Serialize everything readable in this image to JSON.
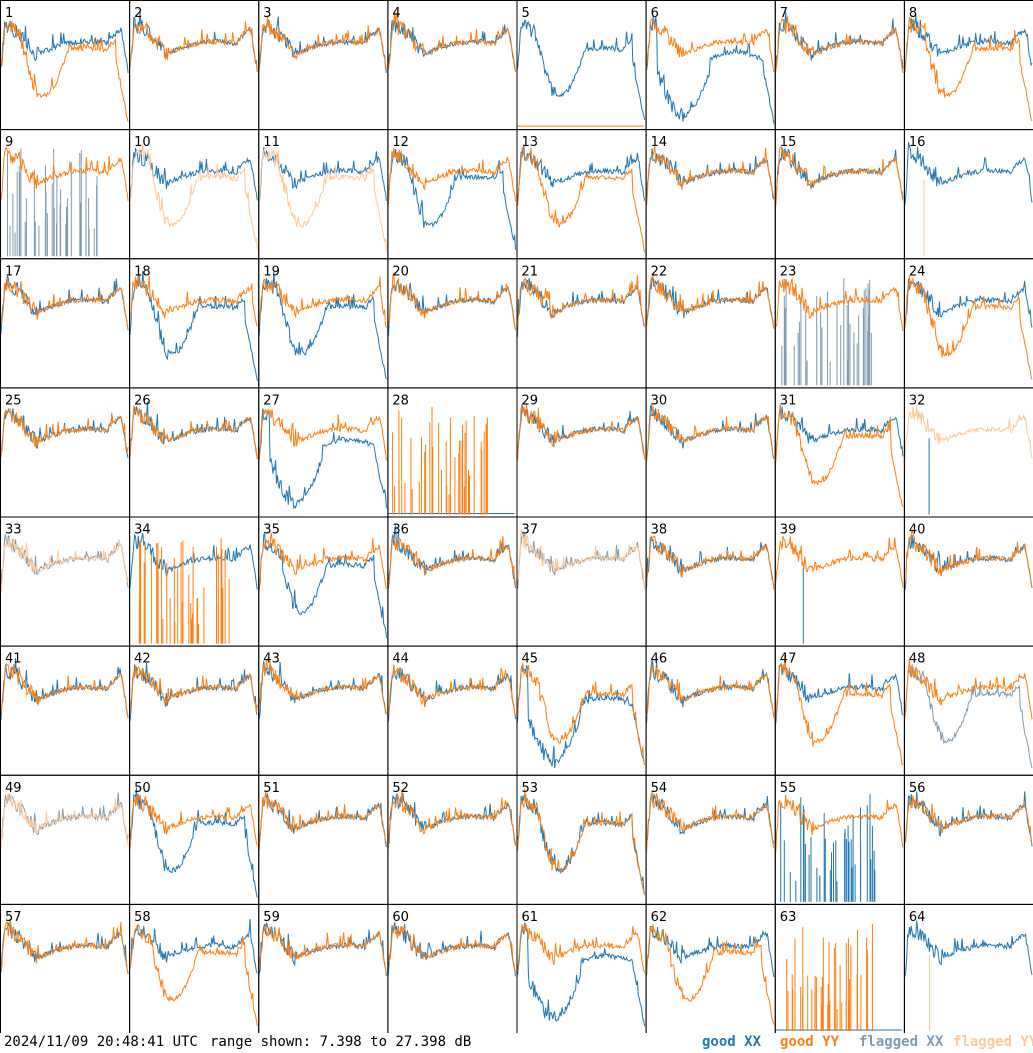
{
  "footer": {
    "timestamp": "2024/11/09 20:48:41 UTC",
    "range_text": "range shown: 7.398 to 27.398 dB"
  },
  "legend": [
    {
      "label": "good XX",
      "color": "#1f77b4"
    },
    {
      "label": "good YY",
      "color": "#ff7f0e"
    },
    {
      "label": "flagged XX",
      "color": "#7f9bb3"
    },
    {
      "label": "flagged YY",
      "color": "#ffc896"
    }
  ],
  "chart_data": {
    "type": "line",
    "title": "",
    "ylim": [
      7.398,
      27.398
    ],
    "yunit": "dB",
    "grid": false,
    "legend_position": "bottom-right",
    "panels": [
      {
        "label": "1",
        "xx": "good",
        "yy": "good",
        "xx_shape": "flat",
        "yy_shape": "dip"
      },
      {
        "label": "2",
        "xx": "good",
        "yy": "good",
        "xx_shape": "flat",
        "yy_shape": "flat"
      },
      {
        "label": "3",
        "xx": "good",
        "yy": "good",
        "xx_shape": "flat",
        "yy_shape": "flat"
      },
      {
        "label": "4",
        "xx": "good",
        "yy": "good",
        "xx_shape": "flat",
        "yy_shape": "flat"
      },
      {
        "label": "5",
        "xx": "good",
        "yy": "good",
        "xx_shape": "dip",
        "yy_shape": "dead"
      },
      {
        "label": "6",
        "xx": "good",
        "yy": "good",
        "xx_shape": "deep",
        "yy_shape": "flat"
      },
      {
        "label": "7",
        "xx": "good",
        "yy": "good",
        "xx_shape": "flat",
        "yy_shape": "flat"
      },
      {
        "label": "8",
        "xx": "good",
        "yy": "good",
        "xx_shape": "flat",
        "yy_shape": "dip"
      },
      {
        "label": "9",
        "xx": "flagged",
        "yy": "good",
        "xx_shape": "spikes",
        "yy_shape": "flat"
      },
      {
        "label": "10",
        "xx": "good",
        "yy": "flagged",
        "xx_shape": "flat",
        "yy_shape": "dip"
      },
      {
        "label": "11",
        "xx": "good",
        "yy": "flagged",
        "xx_shape": "flat",
        "yy_shape": "dip"
      },
      {
        "label": "12",
        "xx": "good",
        "yy": "good",
        "xx_shape": "dip",
        "yy_shape": "flat"
      },
      {
        "label": "13",
        "xx": "good",
        "yy": "good",
        "xx_shape": "flat",
        "yy_shape": "dip"
      },
      {
        "label": "14",
        "xx": "good",
        "yy": "good",
        "xx_shape": "flat",
        "yy_shape": "flat"
      },
      {
        "label": "15",
        "xx": "good",
        "yy": "good",
        "xx_shape": "flat",
        "yy_shape": "flat"
      },
      {
        "label": "16",
        "xx": "good",
        "yy": "flagged",
        "xx_shape": "flat",
        "yy_shape": "spike1"
      },
      {
        "label": "17",
        "xx": "good",
        "yy": "good",
        "xx_shape": "flat",
        "yy_shape": "flat"
      },
      {
        "label": "18",
        "xx": "good",
        "yy": "good",
        "xx_shape": "dip",
        "yy_shape": "flat"
      },
      {
        "label": "19",
        "xx": "good",
        "yy": "good",
        "xx_shape": "dip",
        "yy_shape": "flat"
      },
      {
        "label": "20",
        "xx": "good",
        "yy": "good",
        "xx_shape": "flat",
        "yy_shape": "flat"
      },
      {
        "label": "21",
        "xx": "good",
        "yy": "good",
        "xx_shape": "flat",
        "yy_shape": "flat"
      },
      {
        "label": "22",
        "xx": "good",
        "yy": "good",
        "xx_shape": "flat",
        "yy_shape": "flat"
      },
      {
        "label": "23",
        "xx": "flagged",
        "yy": "good",
        "xx_shape": "spikes",
        "yy_shape": "flat"
      },
      {
        "label": "24",
        "xx": "good",
        "yy": "good",
        "xx_shape": "flat",
        "yy_shape": "dip"
      },
      {
        "label": "25",
        "xx": "good",
        "yy": "good",
        "xx_shape": "flat",
        "yy_shape": "flat"
      },
      {
        "label": "26",
        "xx": "good",
        "yy": "good",
        "xx_shape": "flat",
        "yy_shape": "flat"
      },
      {
        "label": "27",
        "xx": "good",
        "yy": "good",
        "xx_shape": "deep",
        "yy_shape": "flat"
      },
      {
        "label": "28",
        "xx": "good",
        "yy": "good",
        "xx_shape": "dead",
        "yy_shape": "spikes"
      },
      {
        "label": "29",
        "xx": "good",
        "yy": "good",
        "xx_shape": "flat",
        "yy_shape": "flat"
      },
      {
        "label": "30",
        "xx": "good",
        "yy": "good",
        "xx_shape": "flat",
        "yy_shape": "flat"
      },
      {
        "label": "31",
        "xx": "good",
        "yy": "good",
        "xx_shape": "flat",
        "yy_shape": "dip"
      },
      {
        "label": "32",
        "xx": "good",
        "yy": "flagged",
        "xx_shape": "spike1",
        "yy_shape": "flat"
      },
      {
        "label": "33",
        "xx": "flagged",
        "yy": "flagged",
        "xx_shape": "flat",
        "yy_shape": "flat"
      },
      {
        "label": "34",
        "xx": "good",
        "yy": "good",
        "xx_shape": "flat",
        "yy_shape": "spikes"
      },
      {
        "label": "35",
        "xx": "good",
        "yy": "good",
        "xx_shape": "dip",
        "yy_shape": "flat"
      },
      {
        "label": "36",
        "xx": "good",
        "yy": "good",
        "xx_shape": "flat",
        "yy_shape": "flat"
      },
      {
        "label": "37",
        "xx": "flagged",
        "yy": "flagged",
        "xx_shape": "flat",
        "yy_shape": "flat"
      },
      {
        "label": "38",
        "xx": "good",
        "yy": "good",
        "xx_shape": "flat",
        "yy_shape": "flat"
      },
      {
        "label": "39",
        "xx": "good",
        "yy": "good",
        "xx_shape": "spike1",
        "yy_shape": "flat"
      },
      {
        "label": "40",
        "xx": "good",
        "yy": "good",
        "xx_shape": "flat",
        "yy_shape": "flat"
      },
      {
        "label": "41",
        "xx": "good",
        "yy": "good",
        "xx_shape": "flat",
        "yy_shape": "flat"
      },
      {
        "label": "42",
        "xx": "good",
        "yy": "good",
        "xx_shape": "flat",
        "yy_shape": "flat"
      },
      {
        "label": "43",
        "xx": "good",
        "yy": "good",
        "xx_shape": "flat",
        "yy_shape": "flat"
      },
      {
        "label": "44",
        "xx": "good",
        "yy": "good",
        "xx_shape": "flat",
        "yy_shape": "flat"
      },
      {
        "label": "45",
        "xx": "good",
        "yy": "good",
        "xx_shape": "deep",
        "yy_shape": "dip"
      },
      {
        "label": "46",
        "xx": "good",
        "yy": "good",
        "xx_shape": "flat",
        "yy_shape": "flat"
      },
      {
        "label": "47",
        "xx": "good",
        "yy": "good",
        "xx_shape": "flat",
        "yy_shape": "dip"
      },
      {
        "label": "48",
        "xx": "flagged",
        "yy": "good",
        "xx_shape": "dip",
        "yy_shape": "flat"
      },
      {
        "label": "49",
        "xx": "flagged",
        "yy": "flagged",
        "xx_shape": "flat",
        "yy_shape": "flat"
      },
      {
        "label": "50",
        "xx": "good",
        "yy": "good",
        "xx_shape": "dip",
        "yy_shape": "flat"
      },
      {
        "label": "51",
        "xx": "good",
        "yy": "good",
        "xx_shape": "flat",
        "yy_shape": "flat"
      },
      {
        "label": "52",
        "xx": "good",
        "yy": "good",
        "xx_shape": "flat",
        "yy_shape": "flat"
      },
      {
        "label": "53",
        "xx": "good",
        "yy": "good",
        "xx_shape": "dip",
        "yy_shape": "dip"
      },
      {
        "label": "54",
        "xx": "good",
        "yy": "good",
        "xx_shape": "flat",
        "yy_shape": "flat"
      },
      {
        "label": "55",
        "xx": "good",
        "yy": "good",
        "xx_shape": "spikes",
        "yy_shape": "flat"
      },
      {
        "label": "56",
        "xx": "good",
        "yy": "good",
        "xx_shape": "flat",
        "yy_shape": "flat"
      },
      {
        "label": "57",
        "xx": "good",
        "yy": "good",
        "xx_shape": "flat",
        "yy_shape": "flat"
      },
      {
        "label": "58",
        "xx": "good",
        "yy": "good",
        "xx_shape": "flat",
        "yy_shape": "dip"
      },
      {
        "label": "59",
        "xx": "good",
        "yy": "good",
        "xx_shape": "flat",
        "yy_shape": "flat"
      },
      {
        "label": "60",
        "xx": "good",
        "yy": "good",
        "xx_shape": "flat",
        "yy_shape": "flat"
      },
      {
        "label": "61",
        "xx": "good",
        "yy": "good",
        "xx_shape": "deep",
        "yy_shape": "flat"
      },
      {
        "label": "62",
        "xx": "good",
        "yy": "good",
        "xx_shape": "flat",
        "yy_shape": "dip"
      },
      {
        "label": "63",
        "xx": "good",
        "yy": "good",
        "xx_shape": "dead",
        "yy_shape": "spikes"
      },
      {
        "label": "64",
        "xx": "good",
        "yy": "flagged",
        "xx_shape": "flat",
        "yy_shape": "spike1"
      }
    ]
  }
}
